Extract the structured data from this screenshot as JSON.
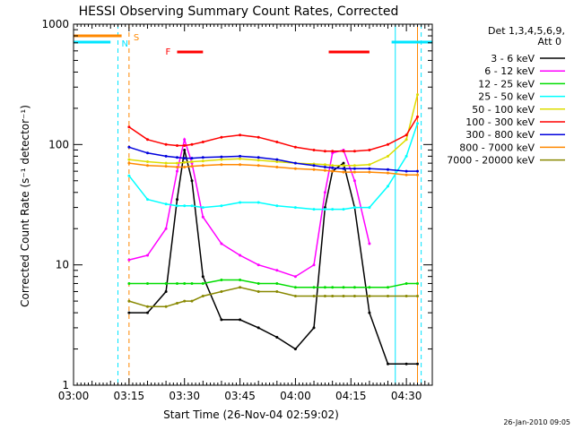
{
  "title": "HESSI Observing Summary Count Rates, Corrected",
  "footer_date": "26-Jan-2010 09:05",
  "legend": {
    "header1": "Det 1,3,4,5,6,9,",
    "header2": "Att 0"
  },
  "markers": {
    "s_label": "S",
    "n_label": "N",
    "f_label": "F"
  },
  "colors": {
    "axes": "#000000",
    "night": "#00e5ff",
    "saa": "#ff8800",
    "flare": "#ff0000"
  },
  "chart_data": {
    "type": "line",
    "title": "HESSI Observing Summary Count Rates, Corrected",
    "xlabel": "Start Time (26-Nov-04 02:59:02)",
    "ylabel": "Corrected Count Rate (s⁻¹ detector⁻¹)",
    "xlim": [
      "03:00",
      "04:37"
    ],
    "ylim": [
      1,
      1000
    ],
    "yscale": "log",
    "x_ticks": [
      "03:00",
      "03:15",
      "03:30",
      "03:45",
      "04:00",
      "04:15",
      "04:30"
    ],
    "y_ticks": [
      "1",
      "10",
      "100",
      "1000"
    ],
    "x": [
      "03:15",
      "03:20",
      "03:25",
      "03:28",
      "03:30",
      "03:32",
      "03:35",
      "03:40",
      "03:45",
      "03:50",
      "03:55",
      "04:00",
      "04:05",
      "04:08",
      "04:10",
      "04:13",
      "04:16",
      "04:20",
      "04:25",
      "04:30",
      "04:33"
    ],
    "series": [
      {
        "name": "3 - 6 keV",
        "color": "#000000",
        "values": [
          4,
          4,
          6,
          35,
          90,
          50,
          8,
          3.5,
          3.5,
          3,
          2.5,
          2,
          3,
          30,
          60,
          70,
          30,
          4,
          1.5,
          1.5,
          1.5
        ]
      },
      {
        "name": "6 - 12 keV",
        "color": "#ff00ff",
        "values": [
          11,
          12,
          20,
          60,
          110,
          70,
          25,
          15,
          12,
          10,
          9,
          8,
          10,
          40,
          85,
          90,
          50,
          15,
          null,
          null,
          null
        ]
      },
      {
        "name": "12 - 25 keV",
        "color": "#00dd00",
        "values": [
          7,
          7,
          7,
          7,
          7,
          7,
          7,
          7.5,
          7.5,
          7,
          7,
          6.5,
          6.5,
          6.5,
          6.5,
          6.5,
          6.5,
          6.5,
          6.5,
          7,
          7
        ]
      },
      {
        "name": "25 - 50 keV",
        "color": "#00ffff",
        "values": [
          55,
          35,
          32,
          31,
          31,
          31,
          30,
          31,
          33,
          33,
          31,
          30,
          29,
          29,
          29,
          29,
          30,
          30,
          45,
          80,
          150
        ]
      },
      {
        "name": "50 - 100 keV",
        "color": "#dddd00",
        "values": [
          75,
          72,
          70,
          70,
          71,
          72,
          73,
          75,
          76,
          74,
          72,
          70,
          69,
          68,
          67,
          67,
          67,
          68,
          80,
          110,
          260
        ]
      },
      {
        "name": "100 - 300 keV",
        "color": "#ff0000",
        "values": [
          140,
          110,
          100,
          98,
          98,
          100,
          105,
          115,
          120,
          115,
          105,
          95,
          90,
          88,
          88,
          88,
          88,
          90,
          100,
          120,
          170
        ]
      },
      {
        "name": "300 - 800 keV",
        "color": "#0000dd",
        "values": [
          95,
          85,
          80,
          78,
          77,
          77,
          78,
          79,
          80,
          78,
          75,
          70,
          67,
          65,
          64,
          63,
          63,
          63,
          62,
          60,
          60
        ]
      },
      {
        "name": "800 - 7000 keV",
        "color": "#ff8800",
        "values": [
          70,
          67,
          66,
          65,
          65,
          66,
          67,
          68,
          68,
          67,
          65,
          63,
          62,
          61,
          60,
          59,
          59,
          59,
          58,
          56,
          56
        ]
      },
      {
        "name": "7000 - 20000 keV",
        "color": "#888800",
        "values": [
          5,
          4.5,
          4.5,
          4.8,
          5,
          5,
          5.5,
          6,
          6.5,
          6,
          6,
          5.5,
          5.5,
          5.5,
          5.5,
          5.5,
          5.5,
          5.5,
          5.5,
          5.5,
          5.5
        ]
      }
    ],
    "grid": false,
    "legend_position": "right"
  }
}
